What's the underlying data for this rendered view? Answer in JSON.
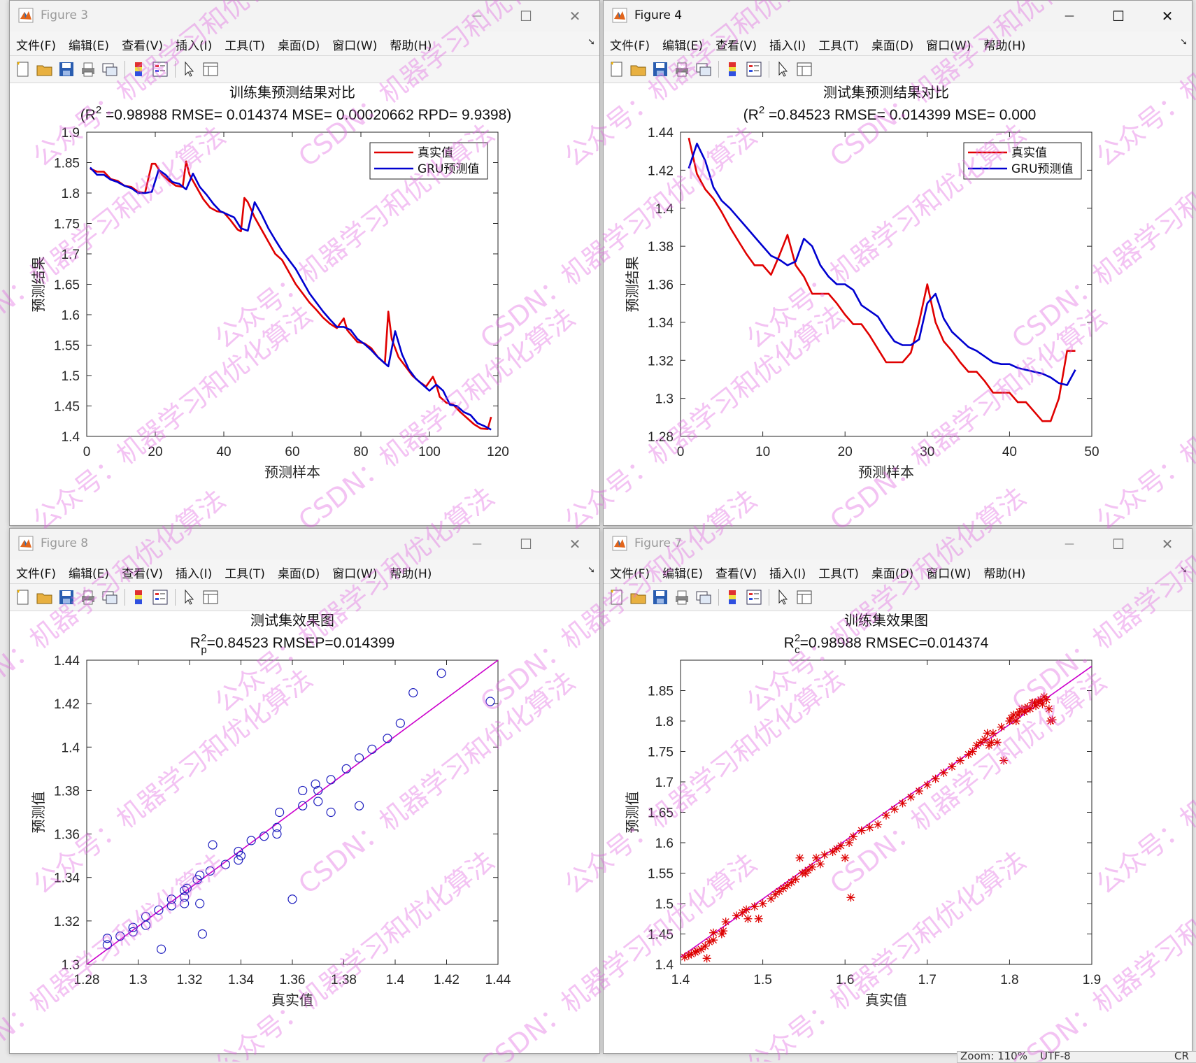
{
  "windows": {
    "fig3": {
      "title": "Figure 3",
      "plot_title": "训练集预测结果对比",
      "subtitle_prefix": "(R",
      "subtitle_sup": "2",
      "subtitle_rest": " =0.98988 RMSE= 0.014374 MSE= 0.00020662 RPD= 9.9398)",
      "xlabel": "预测样本",
      "ylabel": "预测结果",
      "legend": [
        "真实值",
        "GRU预测值"
      ]
    },
    "fig4": {
      "title": "Figure 4",
      "plot_title": "测试集预测结果对比",
      "subtitle_prefix": "(R",
      "subtitle_sup": "2",
      "subtitle_rest": " =0.84523 RMSE= 0.014399 MSE= 0.000",
      "xlabel": "预测样本",
      "ylabel": "预测结果",
      "legend": [
        "真实值",
        "GRU预测值"
      ]
    },
    "fig8": {
      "title": "Figure 8",
      "plot_title": "测试集效果图",
      "subtitle_r": "R",
      "subtitle_sup": "2",
      "subtitle_sub": "p",
      "subtitle_rest": "=0.84523  RMSEP=0.014399",
      "xlabel": "真实值",
      "ylabel": "预测值"
    },
    "fig7": {
      "title": "Figure 7",
      "plot_title": "训练集效果图",
      "subtitle_r": "R",
      "subtitle_sup": "2",
      "subtitle_sub": "c",
      "subtitle_rest": "=0.98988  RMSEC=0.014374",
      "xlabel": "真实值",
      "ylabel": "预测值"
    }
  },
  "menu": [
    "文件(F)",
    "编辑(E)",
    "查看(V)",
    "插入(I)",
    "工具(T)",
    "桌面(D)",
    "窗口(W)",
    "帮助(H)"
  ],
  "window_controls": {
    "minimize": "—",
    "maximize": "☐",
    "close": "✕"
  },
  "status_bar": {
    "zoom": "Zoom: 110%",
    "encoding": "UTF-8",
    "cr": "CR"
  },
  "watermark": {
    "text1": "公众号：机器学习和优化算法",
    "text2": "CSDN：机器学习和优化算法",
    "color": "#e060e0"
  },
  "colors": {
    "true_line": "#e00000",
    "pred_line": "#0000d0",
    "fit_line": "#cc00cc",
    "scatter_test": "#1f1fbf",
    "scatter_train": "#dd0000"
  },
  "chart_data": [
    {
      "id": "fig3",
      "type": "line",
      "xlim": [
        0,
        120
      ],
      "ylim": [
        1.4,
        1.9
      ],
      "xticks": [
        0,
        20,
        40,
        60,
        80,
        100,
        120
      ],
      "yticks": [
        1.4,
        1.45,
        1.5,
        1.55,
        1.6,
        1.65,
        1.7,
        1.75,
        1.8,
        1.85,
        1.9
      ],
      "legend_position": "top-right",
      "series": [
        {
          "name": "真实值",
          "x": [
            1,
            3,
            5,
            7,
            9,
            11,
            13,
            15,
            17,
            19,
            20,
            22,
            24,
            26,
            28,
            29,
            30,
            32,
            34,
            36,
            38,
            40,
            42,
            44,
            45,
            46,
            47,
            49,
            51,
            53,
            55,
            57,
            59,
            61,
            63,
            65,
            67,
            69,
            71,
            73,
            75,
            76,
            77,
            79,
            81,
            83,
            85,
            87,
            88,
            89,
            91,
            93,
            95,
            97,
            99,
            101,
            102,
            103,
            105,
            107,
            109,
            111,
            113,
            115,
            117,
            118
          ],
          "y": [
            1.84,
            1.835,
            1.835,
            1.823,
            1.82,
            1.812,
            1.81,
            1.802,
            1.8,
            1.848,
            1.848,
            1.83,
            1.82,
            1.812,
            1.81,
            1.852,
            1.83,
            1.81,
            1.79,
            1.776,
            1.77,
            1.768,
            1.755,
            1.74,
            1.737,
            1.792,
            1.785,
            1.76,
            1.74,
            1.72,
            1.7,
            1.69,
            1.67,
            1.65,
            1.635,
            1.62,
            1.608,
            1.595,
            1.585,
            1.578,
            1.594,
            1.575,
            1.568,
            1.555,
            1.553,
            1.545,
            1.53,
            1.52,
            1.605,
            1.56,
            1.53,
            1.515,
            1.5,
            1.49,
            1.482,
            1.498,
            1.485,
            1.465,
            1.455,
            1.452,
            1.44,
            1.43,
            1.42,
            1.413,
            1.412,
            1.432
          ]
        },
        {
          "name": "GRU预测值",
          "x": [
            1,
            3,
            5,
            7,
            9,
            11,
            13,
            15,
            17,
            19,
            21,
            23,
            25,
            27,
            29,
            31,
            33,
            35,
            37,
            39,
            41,
            43,
            45,
            47,
            49,
            51,
            53,
            55,
            57,
            59,
            61,
            63,
            65,
            67,
            69,
            71,
            73,
            75,
            77,
            79,
            81,
            83,
            85,
            87,
            88,
            90,
            92,
            94,
            96,
            98,
            100,
            102,
            104,
            106,
            108,
            110,
            112,
            114,
            116,
            118
          ],
          "y": [
            1.842,
            1.83,
            1.83,
            1.822,
            1.818,
            1.812,
            1.808,
            1.8,
            1.8,
            1.802,
            1.838,
            1.83,
            1.818,
            1.815,
            1.806,
            1.832,
            1.81,
            1.797,
            1.782,
            1.77,
            1.765,
            1.76,
            1.742,
            1.738,
            1.785,
            1.765,
            1.742,
            1.723,
            1.705,
            1.69,
            1.675,
            1.655,
            1.635,
            1.62,
            1.605,
            1.592,
            1.58,
            1.58,
            1.575,
            1.56,
            1.552,
            1.542,
            1.53,
            1.52,
            1.515,
            1.573,
            1.535,
            1.51,
            1.495,
            1.485,
            1.475,
            1.485,
            1.475,
            1.452,
            1.45,
            1.44,
            1.435,
            1.422,
            1.417,
            1.411
          ]
        }
      ]
    },
    {
      "id": "fig4",
      "type": "line",
      "xlim": [
        0,
        50
      ],
      "ylim": [
        1.28,
        1.44
      ],
      "xticks": [
        0,
        10,
        20,
        30,
        40,
        50
      ],
      "yticks": [
        1.28,
        1.3,
        1.32,
        1.34,
        1.36,
        1.38,
        1.4,
        1.42,
        1.44
      ],
      "legend_position": "top-right",
      "series": [
        {
          "name": "真实值",
          "x": [
            1,
            2,
            3,
            4,
            5,
            6,
            7,
            8,
            9,
            10,
            11,
            12,
            13,
            14,
            15,
            16,
            17,
            18,
            19,
            20,
            21,
            22,
            23,
            24,
            25,
            26,
            27,
            28,
            29,
            30,
            31,
            32,
            33,
            34,
            35,
            36,
            37,
            38,
            39,
            40,
            41,
            42,
            43,
            44,
            45,
            46,
            47,
            48
          ],
          "y": [
            1.437,
            1.418,
            1.41,
            1.405,
            1.398,
            1.39,
            1.383,
            1.376,
            1.37,
            1.37,
            1.365,
            1.375,
            1.386,
            1.37,
            1.364,
            1.355,
            1.355,
            1.355,
            1.35,
            1.344,
            1.339,
            1.339,
            1.333,
            1.326,
            1.319,
            1.319,
            1.319,
            1.324,
            1.34,
            1.36,
            1.34,
            1.33,
            1.325,
            1.319,
            1.314,
            1.314,
            1.309,
            1.303,
            1.303,
            1.303,
            1.298,
            1.298,
            1.293,
            1.288,
            1.288,
            1.3,
            1.325,
            1.325
          ]
        },
        {
          "name": "GRU预测值",
          "x": [
            1,
            2,
            3,
            4,
            5,
            6,
            7,
            8,
            9,
            10,
            11,
            12,
            13,
            14,
            15,
            16,
            17,
            18,
            19,
            20,
            21,
            22,
            23,
            24,
            25,
            26,
            27,
            28,
            29,
            30,
            31,
            32,
            33,
            34,
            35,
            36,
            37,
            38,
            39,
            40,
            41,
            42,
            43,
            44,
            45,
            46,
            47,
            48
          ],
          "y": [
            1.421,
            1.434,
            1.425,
            1.411,
            1.404,
            1.4,
            1.395,
            1.39,
            1.385,
            1.38,
            1.375,
            1.373,
            1.37,
            1.372,
            1.384,
            1.38,
            1.37,
            1.364,
            1.36,
            1.36,
            1.357,
            1.349,
            1.346,
            1.343,
            1.336,
            1.33,
            1.328,
            1.328,
            1.331,
            1.35,
            1.355,
            1.342,
            1.335,
            1.331,
            1.327,
            1.325,
            1.322,
            1.319,
            1.318,
            1.318,
            1.316,
            1.315,
            1.314,
            1.313,
            1.311,
            1.308,
            1.307,
            1.315
          ]
        }
      ]
    },
    {
      "id": "fig8",
      "type": "scatter",
      "xlim": [
        1.28,
        1.44
      ],
      "ylim": [
        1.3,
        1.44
      ],
      "xticks": [
        1.28,
        1.3,
        1.32,
        1.34,
        1.36,
        1.38,
        1.4,
        1.42,
        1.44
      ],
      "yticks": [
        1.3,
        1.32,
        1.34,
        1.36,
        1.38,
        1.4,
        1.42,
        1.44
      ],
      "fit_line": [
        [
          1.28,
          1.3
        ],
        [
          1.44,
          1.44
        ]
      ],
      "points": [
        [
          1.288,
          1.309
        ],
        [
          1.288,
          1.312
        ],
        [
          1.293,
          1.313
        ],
        [
          1.298,
          1.317
        ],
        [
          1.298,
          1.315
        ],
        [
          1.303,
          1.318
        ],
        [
          1.303,
          1.322
        ],
        [
          1.308,
          1.325
        ],
        [
          1.309,
          1.307
        ],
        [
          1.313,
          1.327
        ],
        [
          1.313,
          1.33
        ],
        [
          1.318,
          1.328
        ],
        [
          1.318,
          1.331
        ],
        [
          1.318,
          1.334
        ],
        [
          1.319,
          1.335
        ],
        [
          1.323,
          1.339
        ],
        [
          1.324,
          1.341
        ],
        [
          1.324,
          1.328
        ],
        [
          1.325,
          1.314
        ],
        [
          1.328,
          1.343
        ],
        [
          1.329,
          1.355
        ],
        [
          1.334,
          1.346
        ],
        [
          1.339,
          1.348
        ],
        [
          1.339,
          1.352
        ],
        [
          1.34,
          1.35
        ],
        [
          1.344,
          1.357
        ],
        [
          1.349,
          1.359
        ],
        [
          1.354,
          1.36
        ],
        [
          1.354,
          1.363
        ],
        [
          1.355,
          1.37
        ],
        [
          1.36,
          1.33
        ],
        [
          1.364,
          1.373
        ],
        [
          1.364,
          1.38
        ],
        [
          1.369,
          1.383
        ],
        [
          1.37,
          1.375
        ],
        [
          1.37,
          1.38
        ],
        [
          1.375,
          1.37
        ],
        [
          1.375,
          1.385
        ],
        [
          1.381,
          1.39
        ],
        [
          1.386,
          1.395
        ],
        [
          1.386,
          1.373
        ],
        [
          1.391,
          1.399
        ],
        [
          1.397,
          1.404
        ],
        [
          1.402,
          1.411
        ],
        [
          1.407,
          1.425
        ],
        [
          1.418,
          1.434
        ],
        [
          1.437,
          1.421
        ]
      ]
    },
    {
      "id": "fig7",
      "type": "scatter",
      "xlim": [
        1.4,
        1.9
      ],
      "ylim": [
        1.4,
        1.9
      ],
      "xticks": [
        1.4,
        1.5,
        1.6,
        1.7,
        1.8,
        1.9
      ],
      "yticks": [
        1.4,
        1.45,
        1.5,
        1.55,
        1.6,
        1.65,
        1.7,
        1.75,
        1.8,
        1.85
      ],
      "fit_line": [
        [
          1.4,
          1.412
        ],
        [
          1.9,
          1.89
        ]
      ],
      "points": [
        [
          1.405,
          1.412
        ],
        [
          1.41,
          1.415
        ],
        [
          1.413,
          1.417
        ],
        [
          1.418,
          1.42
        ],
        [
          1.42,
          1.422
        ],
        [
          1.425,
          1.425
        ],
        [
          1.43,
          1.43
        ],
        [
          1.432,
          1.41
        ],
        [
          1.435,
          1.437
        ],
        [
          1.44,
          1.44
        ],
        [
          1.44,
          1.452
        ],
        [
          1.45,
          1.45
        ],
        [
          1.452,
          1.455
        ],
        [
          1.455,
          1.47
        ],
        [
          1.468,
          1.48
        ],
        [
          1.475,
          1.485
        ],
        [
          1.48,
          1.49
        ],
        [
          1.482,
          1.475
        ],
        [
          1.49,
          1.495
        ],
        [
          1.495,
          1.475
        ],
        [
          1.5,
          1.5
        ],
        [
          1.51,
          1.508
        ],
        [
          1.515,
          1.515
        ],
        [
          1.52,
          1.52
        ],
        [
          1.525,
          1.525
        ],
        [
          1.53,
          1.53
        ],
        [
          1.535,
          1.535
        ],
        [
          1.54,
          1.54
        ],
        [
          1.545,
          1.575
        ],
        [
          1.548,
          1.55
        ],
        [
          1.552,
          1.55
        ],
        [
          1.555,
          1.555
        ],
        [
          1.56,
          1.56
        ],
        [
          1.565,
          1.575
        ],
        [
          1.57,
          1.565
        ],
        [
          1.575,
          1.58
        ],
        [
          1.585,
          1.585
        ],
        [
          1.59,
          1.59
        ],
        [
          1.595,
          1.595
        ],
        [
          1.6,
          1.575
        ],
        [
          1.605,
          1.6
        ],
        [
          1.607,
          1.51
        ],
        [
          1.61,
          1.61
        ],
        [
          1.62,
          1.62
        ],
        [
          1.63,
          1.625
        ],
        [
          1.64,
          1.63
        ],
        [
          1.65,
          1.645
        ],
        [
          1.66,
          1.655
        ],
        [
          1.67,
          1.665
        ],
        [
          1.68,
          1.675
        ],
        [
          1.69,
          1.685
        ],
        [
          1.7,
          1.695
        ],
        [
          1.71,
          1.705
        ],
        [
          1.72,
          1.715
        ],
        [
          1.73,
          1.725
        ],
        [
          1.74,
          1.735
        ],
        [
          1.75,
          1.745
        ],
        [
          1.755,
          1.75
        ],
        [
          1.76,
          1.76
        ],
        [
          1.765,
          1.765
        ],
        [
          1.77,
          1.77
        ],
        [
          1.773,
          1.78
        ],
        [
          1.775,
          1.76
        ],
        [
          1.778,
          1.765
        ],
        [
          1.78,
          1.78
        ],
        [
          1.785,
          1.765
        ],
        [
          1.79,
          1.79
        ],
        [
          1.793,
          1.735
        ],
        [
          1.8,
          1.8
        ],
        [
          1.802,
          1.805
        ],
        [
          1.805,
          1.81
        ],
        [
          1.808,
          1.8
        ],
        [
          1.81,
          1.81
        ],
        [
          1.812,
          1.815
        ],
        [
          1.815,
          1.82
        ],
        [
          1.818,
          1.815
        ],
        [
          1.82,
          1.82
        ],
        [
          1.822,
          1.823
        ],
        [
          1.825,
          1.82
        ],
        [
          1.828,
          1.83
        ],
        [
          1.83,
          1.83
        ],
        [
          1.832,
          1.825
        ],
        [
          1.835,
          1.832
        ],
        [
          1.838,
          1.835
        ],
        [
          1.84,
          1.828
        ],
        [
          1.842,
          1.84
        ],
        [
          1.845,
          1.835
        ],
        [
          1.848,
          1.82
        ],
        [
          1.85,
          1.8
        ],
        [
          1.852,
          1.802
        ]
      ]
    }
  ]
}
